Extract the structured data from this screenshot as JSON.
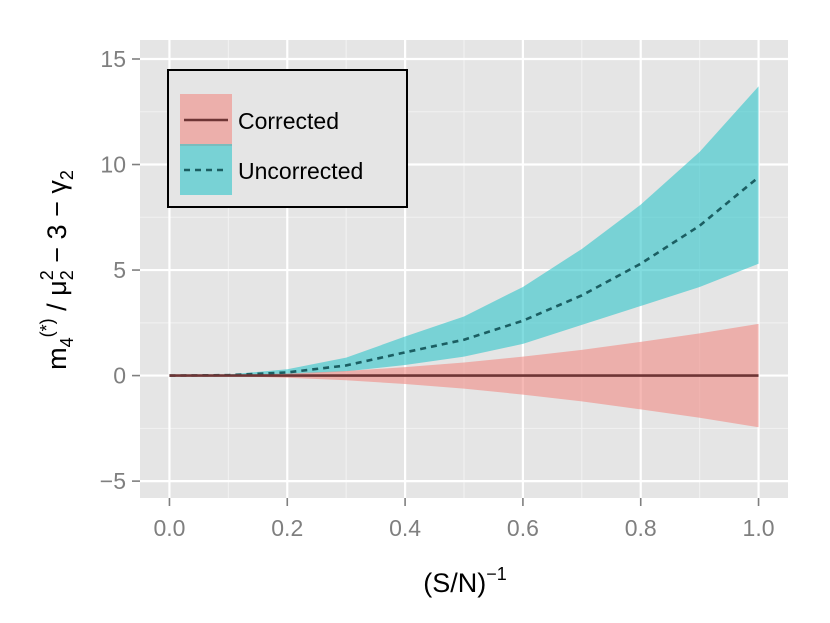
{
  "chart_data": {
    "type": "area",
    "xlabel": "(S/N)",
    "xlabel_sup": "−1",
    "ylabel": {
      "m_base": "m",
      "m_sub": "4",
      "m_sup": "(*)",
      "slash": " / ",
      "mu_base": "μ",
      "mu_sub": "2",
      "mu_sup": "2",
      "rest": " − 3 − ",
      "gamma_base": "γ",
      "gamma_sub": "2"
    },
    "xlim": [
      -0.05,
      1.05
    ],
    "ylim": [
      -5.8,
      15.9
    ],
    "x_ticks": [
      0.0,
      0.2,
      0.4,
      0.6,
      0.8,
      1.0
    ],
    "x_tick_labels": [
      "0.0",
      "0.2",
      "0.4",
      "0.6",
      "0.8",
      "1.0"
    ],
    "y_ticks": [
      -5,
      0,
      5,
      10,
      15
    ],
    "y_tick_labels": [
      "−5",
      "0",
      "5",
      "10",
      "15"
    ],
    "grid": true,
    "legend_position": "top-left",
    "series": [
      {
        "name": "Corrected",
        "line_style": "solid",
        "line_color": "#6e3535",
        "band_color": "#f08a84",
        "band_opacity": 0.6,
        "x": [
          0.0,
          0.1,
          0.2,
          0.3,
          0.4,
          0.5,
          0.6,
          0.7,
          0.8,
          0.9,
          1.0
        ],
        "y": [
          0.0,
          0.0,
          0.0,
          0.0,
          0.0,
          0.0,
          0.0,
          0.0,
          0.0,
          0.0,
          0.0
        ],
        "upper": [
          0.0,
          0.02,
          0.1,
          0.22,
          0.4,
          0.62,
          0.9,
          1.22,
          1.6,
          2.0,
          2.45
        ],
        "lower": [
          0.0,
          -0.02,
          -0.1,
          -0.22,
          -0.4,
          -0.62,
          -0.9,
          -1.22,
          -1.6,
          -2.0,
          -2.45
        ]
      },
      {
        "name": "Uncorrected",
        "line_style": "dashed",
        "line_color": "#1b5e62",
        "band_color": "#2ec4c9",
        "band_opacity": 0.6,
        "x": [
          0.0,
          0.1,
          0.2,
          0.3,
          0.4,
          0.5,
          0.6,
          0.7,
          0.8,
          0.9,
          1.0
        ],
        "y": [
          0.0,
          0.02,
          0.15,
          0.48,
          1.1,
          1.7,
          2.6,
          3.8,
          5.3,
          7.1,
          9.4
        ],
        "upper": [
          0.0,
          0.05,
          0.3,
          0.85,
          1.85,
          2.8,
          4.2,
          6.0,
          8.1,
          10.6,
          13.7
        ],
        "lower": [
          0.0,
          0.0,
          0.05,
          0.2,
          0.5,
          0.9,
          1.5,
          2.4,
          3.3,
          4.2,
          5.3
        ]
      }
    ]
  }
}
